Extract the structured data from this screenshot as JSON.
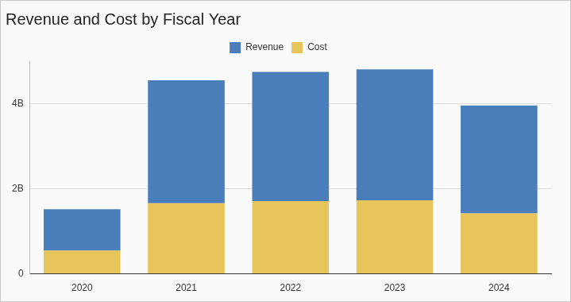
{
  "chart_data": {
    "type": "bar",
    "title": "Revenue and Cost by Fiscal Year",
    "categories": [
      "2020",
      "2021",
      "2022",
      "2023",
      "2024"
    ],
    "series": [
      {
        "name": "Revenue",
        "color": "#4a7ebb",
        "values": [
          970000000,
          2890000000,
          3040000000,
          3080000000,
          2540000000
        ]
      },
      {
        "name": "Cost",
        "color": "#e8c55a",
        "values": [
          550000000,
          1660000000,
          1710000000,
          1730000000,
          1420000000
        ]
      }
    ],
    "stacked": true,
    "ylim": [
      0,
      5000000000
    ],
    "yticks": [
      0,
      {
        "value": 2000000000,
        "label": "2B"
      },
      {
        "value": 4000000000,
        "label": "4B"
      }
    ],
    "grid": true,
    "legend": "top"
  }
}
